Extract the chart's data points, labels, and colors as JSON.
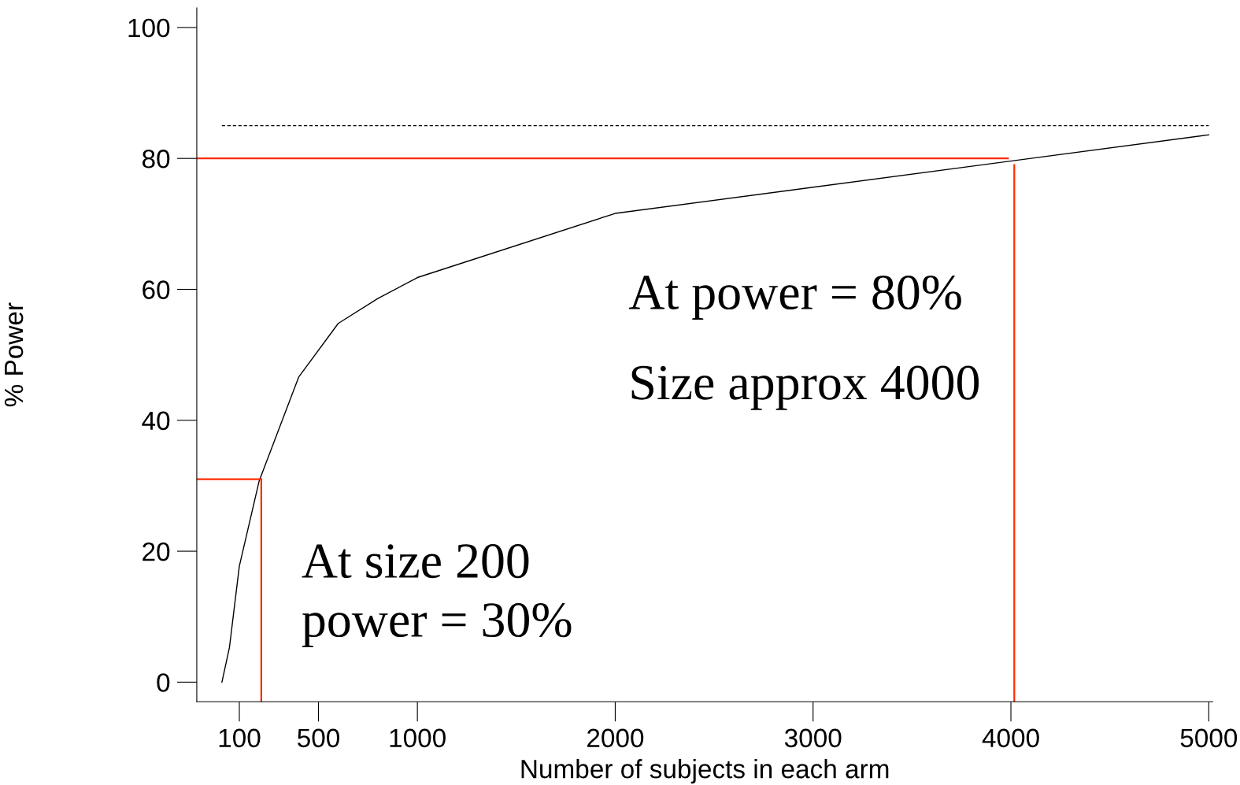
{
  "chart_data": {
    "type": "line",
    "xlabel": "Number of subjects in each arm",
    "ylabel": "% Power",
    "xlim": [
      -115,
      5020
    ],
    "ylim": [
      -3,
      103
    ],
    "xticks": [
      100,
      500,
      1000,
      2000,
      3000,
      4000,
      5000
    ],
    "yticks": [
      0,
      20,
      40,
      60,
      80,
      100
    ],
    "grid": false,
    "legend": false,
    "marker": "none",
    "series": [
      {
        "color": "#000000",
        "line_style": "solid",
        "x": [
          12,
          50,
          100,
          200,
          400,
          600,
          800,
          1000,
          2000,
          5000
        ],
        "values": [
          0,
          5.3,
          17.7,
          30.7,
          46.6,
          54.8,
          58.6,
          61.8,
          71.6,
          83.6
        ]
      },
      {
        "color": "#000000",
        "line_style": "dashed",
        "x": [
          12,
          5000
        ],
        "values": [
          85,
          85
        ]
      },
      {
        "color": "#ff2a00",
        "line_style": "solid",
        "x": [
          -115,
          3985
        ],
        "values": [
          80,
          80
        ]
      },
      {
        "color": "#ff2a00",
        "line_style": "solid",
        "x": [
          4017,
          4017
        ],
        "values": [
          -3,
          79
        ]
      },
      {
        "color": "#ff2a00",
        "line_style": "solid",
        "x": [
          -115,
          207
        ],
        "values": [
          31,
          31
        ]
      },
      {
        "color": "#ff2a00",
        "line_style": "solid",
        "x": [
          211,
          211
        ],
        "values": [
          -3,
          31
        ]
      }
    ],
    "annotations": [
      "At power = 80%",
      "Size approx 4000",
      "At size 200",
      "power = 30%"
    ]
  }
}
